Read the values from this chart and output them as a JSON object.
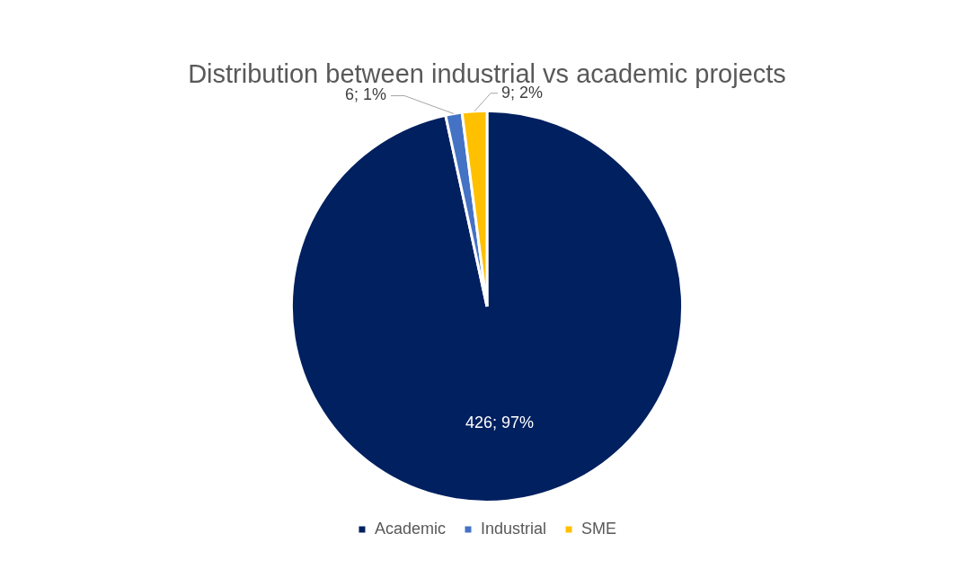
{
  "chart_data": {
    "type": "pie",
    "title": "Distribution between industrial vs academic projects",
    "categories": [
      "Academic",
      "Industrial",
      "SME"
    ],
    "values": [
      426,
      6,
      9
    ],
    "colors": [
      "#002060",
      "#4472c4",
      "#ffc000"
    ],
    "value_labels": [
      "426; 97%",
      "6; 1%",
      "9; 2%"
    ],
    "legend": "bottom"
  }
}
